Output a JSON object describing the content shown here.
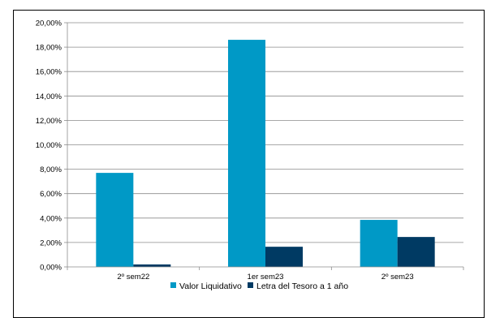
{
  "chart_data": {
    "type": "bar",
    "categories": [
      "2º sem22",
      "1er sem23",
      "2º sem23"
    ],
    "series": [
      {
        "name": "Valor Liquidativo",
        "values": [
          7.7,
          18.6,
          3.85
        ],
        "color": "#0099c6"
      },
      {
        "name": "Letra del Tesoro a 1 año",
        "values": [
          0.2,
          1.65,
          2.45
        ],
        "color": "#003a63"
      }
    ],
    "ylim": [
      0,
      20
    ],
    "y_ticks": [
      "0,00%",
      "2,00%",
      "4,00%",
      "6,00%",
      "8,00%",
      "10,00%",
      "12,00%",
      "14,00%",
      "16,00%",
      "18,00%",
      "20,00%"
    ],
    "grid": true,
    "legend_position": "bottom",
    "title": "",
    "xlabel": "",
    "ylabel": ""
  }
}
